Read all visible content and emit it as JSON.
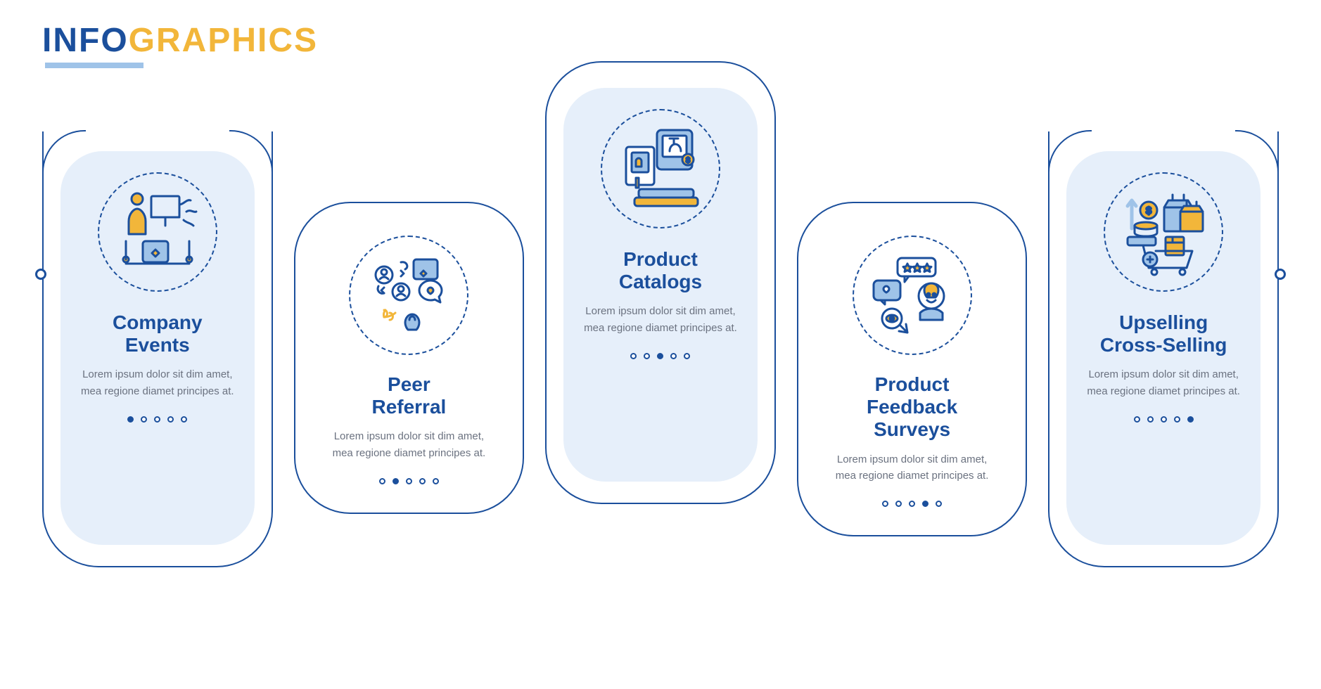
{
  "header": {
    "part1": "INFO",
    "part2": "GRAPHICS",
    "color1": "#1b4f9c",
    "color2": "#f2b63a",
    "underline": "#9fc3e8"
  },
  "colors": {
    "primary": "#1b4f9c",
    "accent": "#f2b63a",
    "light": "#9fc3e8",
    "panel": "#e6effa",
    "text": "#6b7280"
  },
  "body": "Lorem ipsum dolor sit dim amet, mea regione diamet principes at.",
  "cards": [
    {
      "title": "Company\nEvents",
      "active": 0,
      "style": "panel",
      "offset": "down"
    },
    {
      "title": "Peer\nReferral",
      "active": 1,
      "style": "plain",
      "offset": "down2"
    },
    {
      "title": "Product\nCatalogs",
      "active": 2,
      "style": "panel",
      "offset": "up"
    },
    {
      "title": "Product\nFeedback\nSurveys",
      "active": 3,
      "style": "plain",
      "offset": "down2"
    },
    {
      "title": "Upselling\nCross-Selling",
      "active": 4,
      "style": "panel",
      "offset": "down"
    }
  ]
}
